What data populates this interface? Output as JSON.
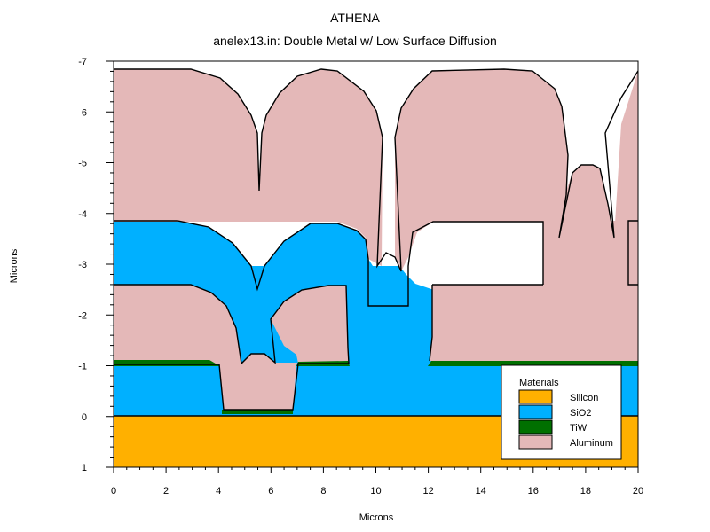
{
  "app_title": "ATHENA",
  "plot_title": "anelex13.in: Double Metal w/ Low Surface Diffusion",
  "axes": {
    "x_label": "Microns",
    "y_label": "Microns",
    "x_range": [
      0,
      20
    ],
    "y_range": [
      1,
      -7
    ],
    "x_ticks": [
      "0",
      "2",
      "4",
      "6",
      "8",
      "10",
      "12",
      "14",
      "16",
      "18",
      "20"
    ],
    "y_ticks": [
      "-7",
      "-6",
      "-5",
      "-4",
      "-3",
      "-2",
      "-1",
      "0",
      "1"
    ]
  },
  "legend": {
    "title": "Materials",
    "placement": "lower-right",
    "items": [
      {
        "label": "Silicon",
        "color": "#ffb000"
      },
      {
        "label": "SiO2",
        "color": "#00b0ff"
      },
      {
        "label": "TiW",
        "color": "#007000"
      },
      {
        "label": "Aluminum",
        "color": "#e4b8b8"
      }
    ]
  },
  "colors": {
    "silicon": "#ffb000",
    "sio2": "#00b0ff",
    "tiw": "#007000",
    "aluminum": "#e4b8b8",
    "outline": "#000000"
  }
}
